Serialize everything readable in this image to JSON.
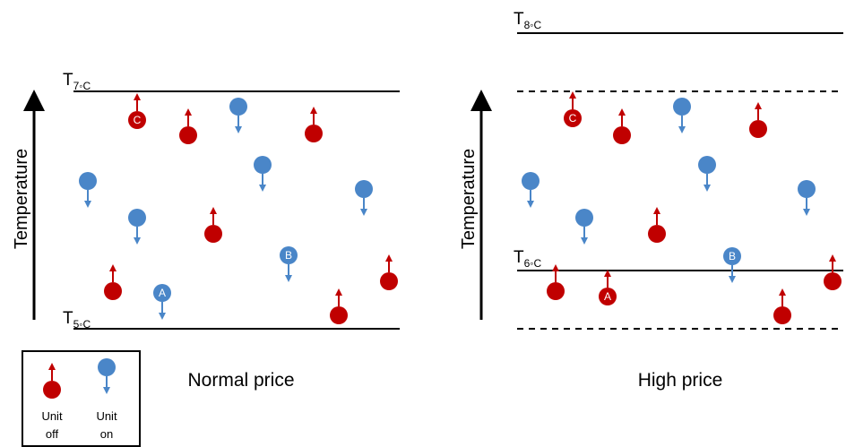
{
  "colors": {
    "unit_off": "#c00000",
    "unit_on": "#4a86c8",
    "line": "#000000"
  },
  "panels": [
    {
      "caption": "Normal price",
      "axis_label": "Temperature",
      "upper_label": {
        "main": "T",
        "sub": "7◦C"
      },
      "lower_label": {
        "main": "T",
        "sub": "5◦C"
      },
      "units": [
        {
          "state": "off",
          "letter": "C"
        },
        {
          "state": "off",
          "letter": ""
        },
        {
          "state": "on",
          "letter": ""
        },
        {
          "state": "off",
          "letter": ""
        },
        {
          "state": "on",
          "letter": ""
        },
        {
          "state": "on",
          "letter": ""
        },
        {
          "state": "on",
          "letter": ""
        },
        {
          "state": "off",
          "letter": ""
        },
        {
          "state": "on",
          "letter": ""
        },
        {
          "state": "on",
          "letter": "B"
        },
        {
          "state": "off",
          "letter": ""
        },
        {
          "state": "on",
          "letter": "A"
        },
        {
          "state": "off",
          "letter": ""
        },
        {
          "state": "off",
          "letter": ""
        }
      ]
    },
    {
      "caption": "High price",
      "axis_label": "Temperature",
      "top_label": {
        "main": "T",
        "sub": "8◦C"
      },
      "mid_label": {
        "main": "T",
        "sub": "6◦C"
      },
      "units": [
        {
          "state": "off",
          "letter": "C"
        },
        {
          "state": "off",
          "letter": ""
        },
        {
          "state": "on",
          "letter": ""
        },
        {
          "state": "off",
          "letter": ""
        },
        {
          "state": "on",
          "letter": ""
        },
        {
          "state": "on",
          "letter": ""
        },
        {
          "state": "on",
          "letter": ""
        },
        {
          "state": "on",
          "letter": ""
        },
        {
          "state": "off",
          "letter": ""
        },
        {
          "state": "on",
          "letter": "B"
        },
        {
          "state": "off",
          "letter": ""
        },
        {
          "state": "off",
          "letter": "A"
        },
        {
          "state": "off",
          "letter": ""
        },
        {
          "state": "off",
          "letter": ""
        }
      ]
    }
  ],
  "legend": {
    "off_line1": "Unit",
    "off_line2": "off",
    "on_line1": "Unit",
    "on_line2": "on"
  }
}
